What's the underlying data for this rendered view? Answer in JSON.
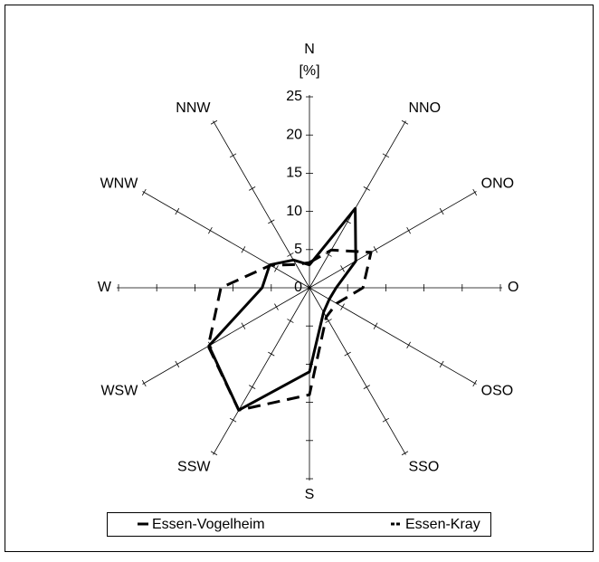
{
  "chart_data": {
    "type": "radar",
    "unit_label": "[%]",
    "categories": [
      "N",
      "NNO",
      "ONO",
      "O",
      "OSO",
      "SSO",
      "S",
      "SSW",
      "WSW",
      "W",
      "WNW",
      "NNW"
    ],
    "rlim": [
      0,
      25
    ],
    "rticks": [
      0,
      5,
      10,
      15,
      20,
      25
    ],
    "series": [
      {
        "name": "Essen-Vogelheim",
        "color": "#000000",
        "line_style": "solid",
        "values": [
          3,
          12,
          7,
          3.5,
          3,
          3.7,
          11,
          18.5,
          15.2,
          6.2,
          6,
          4.2
        ]
      },
      {
        "name": "Essen-Kray",
        "color": "#000000",
        "line_style": "dashed",
        "values": [
          3.3,
          5.7,
          9.3,
          7,
          4.1,
          4.4,
          14,
          18.5,
          15.3,
          11.6,
          5.9,
          3.5
        ]
      }
    ]
  }
}
